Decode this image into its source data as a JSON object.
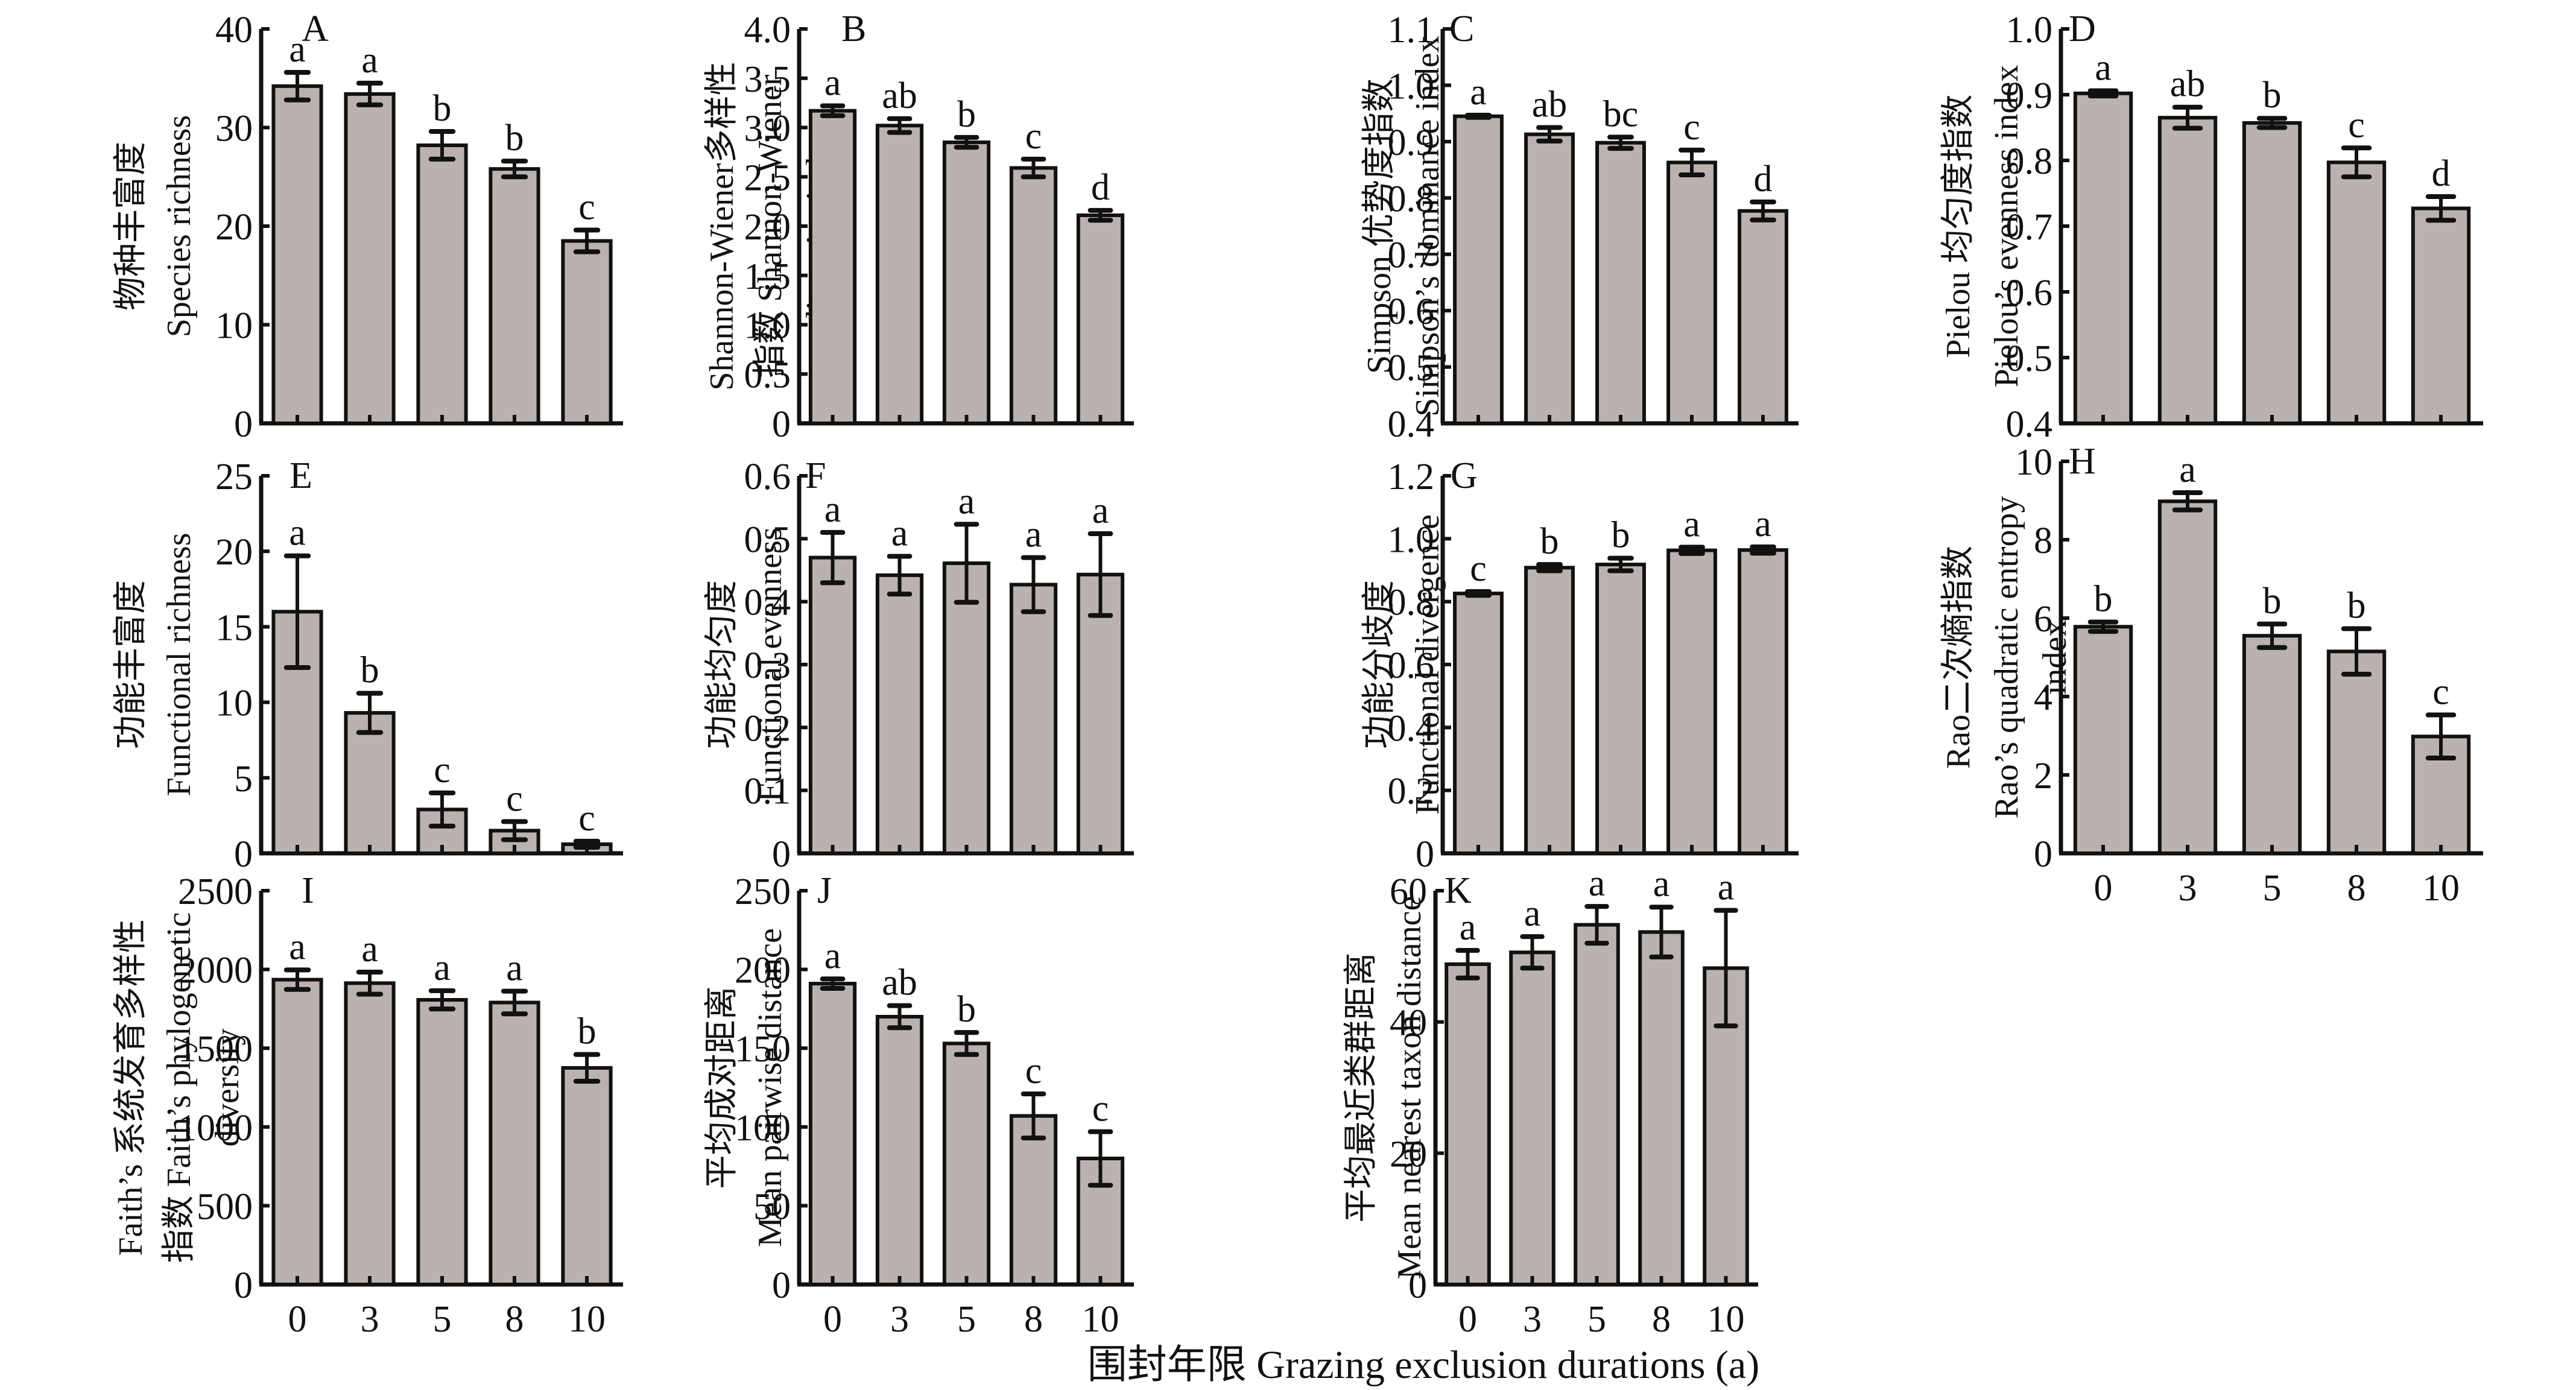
{
  "figure": {
    "xaxis_title": "围封年限 Grazing exclusion durations (a)",
    "bar_fill": "#bab2ae",
    "bar_stroke": "#111111"
  },
  "chart_data": [
    {
      "panel": "A",
      "type": "bar",
      "categories": [
        "0",
        "3",
        "5",
        "8",
        "10"
      ],
      "ylabel_lines": [
        "物种丰富度",
        "Species richness"
      ],
      "ylim": [
        0,
        40
      ],
      "yticks": [
        0,
        10,
        20,
        30,
        40
      ],
      "ytick_labels": [
        "0",
        "10",
        "20",
        "30",
        "40"
      ],
      "values": [
        34.2,
        33.4,
        28.2,
        25.8,
        18.5
      ],
      "errors": [
        1.4,
        1.1,
        1.4,
        0.8,
        1.1
      ],
      "letters": [
        "a",
        "a",
        "b",
        "b",
        "c"
      ],
      "show_xticks": false
    },
    {
      "panel": "B",
      "type": "bar",
      "categories": [
        "0",
        "3",
        "5",
        "8",
        "10"
      ],
      "ylabel_lines": [
        "Shannon-Wiener多样性",
        "指数 Shannon-Wiener",
        "diversity index"
      ],
      "ylim": [
        0,
        4.0
      ],
      "yticks": [
        0,
        0.5,
        1.0,
        1.5,
        2.0,
        2.5,
        3.0,
        3.5,
        4.0
      ],
      "ytick_labels": [
        "0",
        "0.5",
        "1.0",
        "1.5",
        "2.0",
        "2.5",
        "3.0",
        "3.5",
        "4.0"
      ],
      "values": [
        3.17,
        3.02,
        2.85,
        2.59,
        2.11
      ],
      "errors": [
        0.05,
        0.07,
        0.05,
        0.09,
        0.05
      ],
      "letters": [
        "a",
        "ab",
        "b",
        "c",
        "d"
      ],
      "show_xticks": false
    },
    {
      "panel": "C",
      "type": "bar",
      "categories": [
        "0",
        "3",
        "5",
        "8",
        "10"
      ],
      "ylabel_lines": [
        "Simpson 优势度指数",
        "Simpson’s dominance index"
      ],
      "ylim": [
        0.4,
        1.1
      ],
      "yticks": [
        0.4,
        0.5,
        0.6,
        0.7,
        0.8,
        0.9,
        1.0,
        1.1
      ],
      "ytick_labels": [
        "0.4",
        "0.5",
        "0.6",
        "0.7",
        "0.8",
        "0.9",
        "1.0",
        "1.1"
      ],
      "values": [
        0.945,
        0.913,
        0.898,
        0.863,
        0.777
      ],
      "errors": [
        0.002,
        0.012,
        0.01,
        0.022,
        0.016
      ],
      "letters": [
        "a",
        "ab",
        "bc",
        "c",
        "d"
      ],
      "show_xticks": false
    },
    {
      "panel": "D",
      "type": "bar",
      "categories": [
        "0",
        "3",
        "5",
        "8",
        "10"
      ],
      "ylabel_lines": [
        "Pielou 均匀度指数",
        "Pielou’s evenness index"
      ],
      "ylim": [
        0.4,
        1.0
      ],
      "yticks": [
        0.4,
        0.5,
        0.6,
        0.7,
        0.8,
        0.9,
        1.0
      ],
      "ytick_labels": [
        "0.4",
        "0.5",
        "0.6",
        "0.7",
        "0.8",
        "0.9",
        "1.0"
      ],
      "values": [
        0.902,
        0.865,
        0.857,
        0.797,
        0.727
      ],
      "errors": [
        0.004,
        0.016,
        0.007,
        0.022,
        0.018
      ],
      "letters": [
        "a",
        "ab",
        "b",
        "c",
        "d"
      ],
      "show_xticks": false
    },
    {
      "panel": "E",
      "type": "bar",
      "categories": [
        "0",
        "3",
        "5",
        "8",
        "10"
      ],
      "ylabel_lines": [
        "功能丰富度",
        "Functional richness"
      ],
      "ylim": [
        0,
        25
      ],
      "yticks": [
        0,
        5,
        10,
        15,
        20,
        25
      ],
      "ytick_labels": [
        "0",
        "5",
        "10",
        "15",
        "20",
        "25"
      ],
      "values": [
        16.0,
        9.3,
        2.9,
        1.5,
        0.6
      ],
      "errors": [
        3.7,
        1.3,
        1.1,
        0.6,
        0.2
      ],
      "letters": [
        "a",
        "b",
        "c",
        "c",
        "c"
      ],
      "show_xticks": false
    },
    {
      "panel": "F",
      "type": "bar",
      "categories": [
        "0",
        "3",
        "5",
        "8",
        "10"
      ],
      "ylabel_lines": [
        "功能均匀度",
        "Functional evenness"
      ],
      "ylim": [
        0,
        0.6
      ],
      "yticks": [
        0,
        0.1,
        0.2,
        0.3,
        0.4,
        0.5,
        0.6
      ],
      "ytick_labels": [
        "0",
        "0.1",
        "0.2",
        "0.3",
        "0.4",
        "0.5",
        "0.6"
      ],
      "values": [
        0.47,
        0.442,
        0.461,
        0.427,
        0.443
      ],
      "errors": [
        0.04,
        0.03,
        0.062,
        0.043,
        0.065
      ],
      "letters": [
        "a",
        "a",
        "a",
        "a",
        "a"
      ],
      "show_xticks": false
    },
    {
      "panel": "G",
      "type": "bar",
      "categories": [
        "0",
        "3",
        "5",
        "8",
        "10"
      ],
      "ylabel_lines": [
        "功能分歧度",
        "Functional divergence"
      ],
      "ylim": [
        0,
        1.2
      ],
      "yticks": [
        0,
        0.2,
        0.4,
        0.6,
        0.8,
        1.0,
        1.2
      ],
      "ytick_labels": [
        "0",
        "0.2",
        "0.4",
        "0.6",
        "0.8",
        "1.0",
        "1.2"
      ],
      "values": [
        0.826,
        0.908,
        0.918,
        0.963,
        0.964
      ],
      "errors": [
        0.006,
        0.01,
        0.02,
        0.01,
        0.01
      ],
      "letters": [
        "c",
        "b",
        "b",
        "a",
        "a"
      ],
      "show_xticks": false
    },
    {
      "panel": "H",
      "type": "bar",
      "categories": [
        "0",
        "3",
        "5",
        "8",
        "10"
      ],
      "ylabel_lines": [
        "Rao二次熵指数",
        "Rao’s quadratic entropy",
        "index"
      ],
      "ylim": [
        0,
        10
      ],
      "yticks": [
        0,
        2,
        4,
        6,
        8,
        10
      ],
      "ytick_labels": [
        "0",
        "2",
        "4",
        "6",
        "8",
        "10"
      ],
      "values": [
        5.78,
        8.98,
        5.55,
        5.15,
        2.98
      ],
      "errors": [
        0.12,
        0.22,
        0.3,
        0.58,
        0.55
      ],
      "letters": [
        "b",
        "a",
        "b",
        "b",
        "c"
      ],
      "show_xticks": true
    },
    {
      "panel": "I",
      "type": "bar",
      "categories": [
        "0",
        "3",
        "5",
        "8",
        "10"
      ],
      "ylabel_lines": [
        "Faith’s 系统发育多样性",
        "指数 Faith’s phylogenetic",
        "diversity"
      ],
      "ylim": [
        0,
        2500
      ],
      "yticks": [
        0,
        500,
        1000,
        1500,
        2000,
        2500
      ],
      "ytick_labels": [
        "0",
        "500",
        "1000",
        "1500",
        "2000",
        "2500"
      ],
      "values": [
        1935,
        1913,
        1807,
        1790,
        1375
      ],
      "errors": [
        62,
        70,
        58,
        72,
        85
      ],
      "letters": [
        "a",
        "a",
        "a",
        "a",
        "b"
      ],
      "show_xticks": true
    },
    {
      "panel": "J",
      "type": "bar",
      "categories": [
        "0",
        "3",
        "5",
        "8",
        "10"
      ],
      "ylabel_lines": [
        "平均成对距离",
        "Mean pairwise distance"
      ],
      "ylim": [
        0,
        250
      ],
      "yticks": [
        0,
        50,
        100,
        150,
        200,
        250
      ],
      "ytick_labels": [
        "0",
        "50",
        "100",
        "150",
        "200",
        "250"
      ],
      "values": [
        191,
        170,
        153,
        107,
        80
      ],
      "errors": [
        3,
        7,
        7,
        14,
        17
      ],
      "letters": [
        "a",
        "ab",
        "b",
        "c",
        "c"
      ],
      "show_xticks": true
    },
    {
      "panel": "K",
      "type": "bar",
      "categories": [
        "0",
        "3",
        "5",
        "8",
        "10"
      ],
      "ylabel_lines": [
        "平均最近类群距离",
        "Mean nearest taxon distance"
      ],
      "ylim": [
        0,
        60
      ],
      "yticks": [
        0,
        20,
        40,
        60
      ],
      "ytick_labels": [
        "0",
        "20",
        "40",
        "60"
      ],
      "values": [
        48.8,
        50.6,
        54.8,
        53.7,
        48.2
      ],
      "errors": [
        2.1,
        2.4,
        2.8,
        3.8,
        8.8
      ],
      "letters": [
        "a",
        "a",
        "a",
        "a",
        "a"
      ],
      "show_xticks": true
    }
  ]
}
